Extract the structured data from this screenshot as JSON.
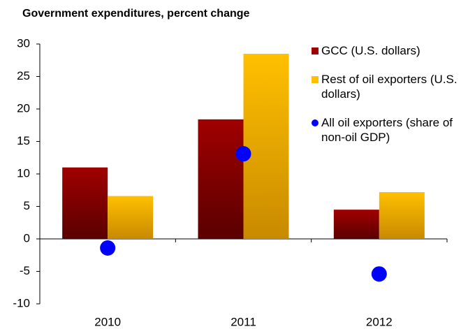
{
  "chart_data": {
    "type": "bar",
    "title": "Government expenditures, percent change",
    "categories": [
      "2010",
      "2011",
      "2012"
    ],
    "series": [
      {
        "name": "GCC (U.S. dollars)",
        "color": "#a00000",
        "values": [
          11,
          18.4,
          4.5
        ]
      },
      {
        "name": "Rest of oil exporters (U.S. dollars)",
        "color": "#ffc000",
        "values": [
          6.6,
          28.5,
          7.2
        ]
      },
      {
        "name": "All oil exporters (share of non-oil GDP)",
        "color": "#0000ff",
        "type": "scatter",
        "values": [
          -1.4,
          13.1,
          -5.4
        ]
      }
    ],
    "ylim": [
      -10,
      30
    ],
    "yticks": [
      -10,
      -5,
      0,
      5,
      10,
      15,
      20,
      25,
      30
    ],
    "grid": false
  }
}
